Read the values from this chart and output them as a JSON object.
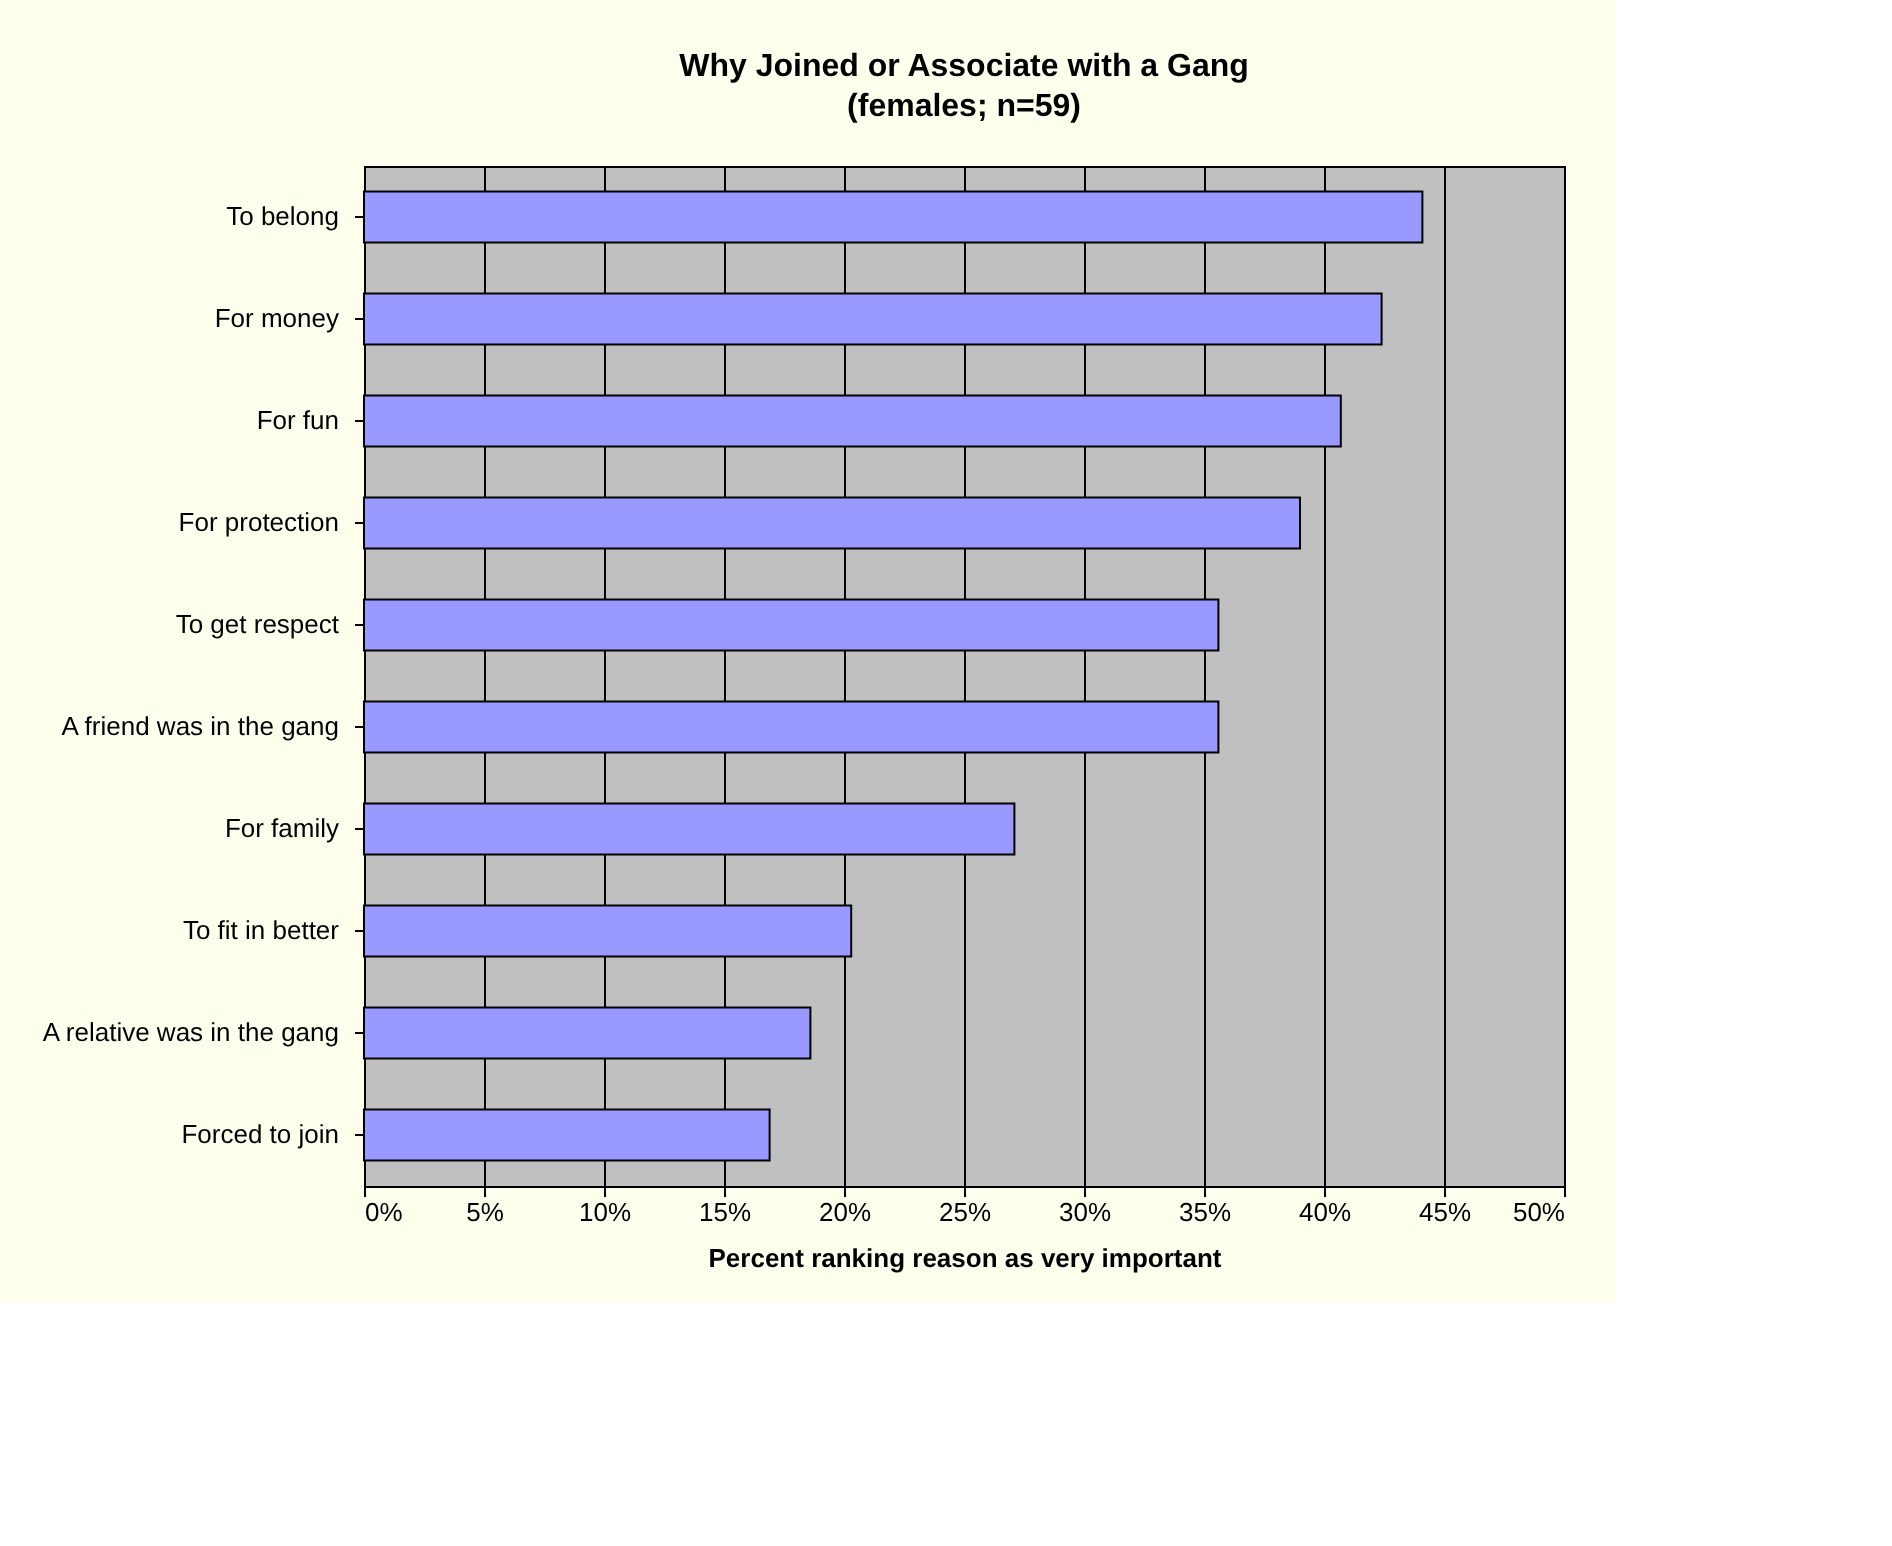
{
  "chart_data": {
    "type": "bar",
    "orientation": "horizontal",
    "title": "Why Joined or Associate with a Gang",
    "subtitle": "(females; n=59)",
    "xlabel": "Percent ranking reason as very important",
    "categories": [
      "To belong",
      "For money",
      "For fun",
      "For protection",
      "To get respect",
      "A friend was in the gang",
      "For family",
      "To fit in better",
      "A relative was in the gang",
      "Forced to join"
    ],
    "values": [
      44.1,
      42.4,
      40.7,
      39.0,
      35.6,
      35.6,
      27.1,
      20.3,
      18.6,
      16.9
    ],
    "color": "#9999ff",
    "xlim": [
      0,
      50
    ],
    "xticks": [
      {
        "value": 0,
        "label": "0%"
      },
      {
        "value": 5,
        "label": "5%"
      },
      {
        "value": 10,
        "label": "10%"
      },
      {
        "value": 15,
        "label": "15%"
      },
      {
        "value": 20,
        "label": "20%"
      },
      {
        "value": 25,
        "label": "25%"
      },
      {
        "value": 30,
        "label": "30%"
      },
      {
        "value": 35,
        "label": "35%"
      },
      {
        "value": 40,
        "label": "40%"
      },
      {
        "value": 45,
        "label": "45%"
      },
      {
        "value": 50,
        "label": "50%"
      }
    ],
    "grid": "x"
  }
}
